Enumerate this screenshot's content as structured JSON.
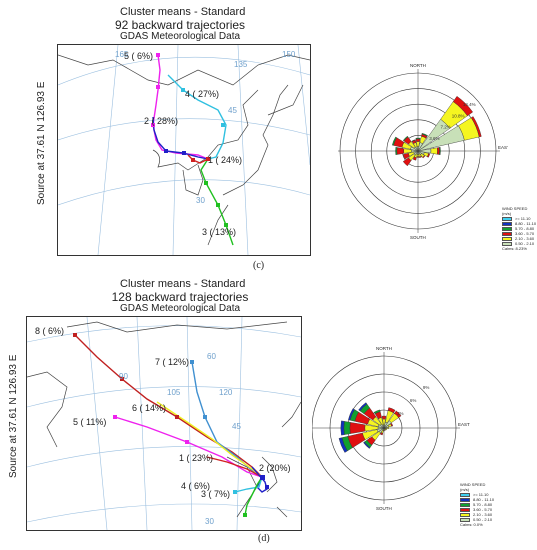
{
  "panels": [
    {
      "id": "c",
      "title1": "Cluster means - Standard",
      "title2": "92 backward trajectories",
      "title3": "GDAS Meteorological Data",
      "source": "Source    at 37.61 N  126.93 E",
      "label": "(c)",
      "clusters": [
        {
          "label": "5 (  6%)",
          "color": "#ee22ee"
        },
        {
          "label": "4 ( 27%)",
          "color": "#30c0e0"
        },
        {
          "label": "2 ( 28%)",
          "color": "#2020c8"
        },
        {
          "label": "1 ( 24%)",
          "color": "#d02020"
        },
        {
          "label": "3 ( 13%)",
          "color": "#20c020"
        }
      ],
      "geo_labels": [
        "165",
        "135",
        "150",
        "45",
        "30"
      ],
      "rose": {
        "directions": [
          "NORTH",
          "EAST",
          "SOUTH",
          "WEST"
        ],
        "ring_labels": [
          "14.4%",
          "10.8%",
          "7.2%",
          "3.6%"
        ],
        "legend_title": "WIND SPEED",
        "legend_unit": "(m/s)",
        "legend": [
          {
            "label": ">= 11.10",
            "color": "#40d0f0"
          },
          {
            "label": "8.80 - 11.10",
            "color": "#1030c0"
          },
          {
            "label": "5.70 - 8.80",
            "color": "#10a030"
          },
          {
            "label": "3.60 - 5.70",
            "color": "#e01010"
          },
          {
            "label": "2.10 - 3.60",
            "color": "#f5f520"
          },
          {
            "label": "0.50 - 2.10",
            "color": "#c8e0b8"
          }
        ],
        "calms": "Calms: 8.23%"
      }
    },
    {
      "id": "d",
      "title1": "Cluster means - Standard",
      "title2": "128 backward trajectories",
      "title3": "GDAS Meteorological Data",
      "source": "Source    at 37.61 N  126.93 E",
      "label": "(d)",
      "clusters": [
        {
          "label": "8 (  6%)",
          "color": "#c02020"
        },
        {
          "label": "7 ( 12%)",
          "color": "#4090d0"
        },
        {
          "label": "6 ( 14%)",
          "color": "#f0f020"
        },
        {
          "label": "5 ( 11%)",
          "color": "#ee22ee"
        },
        {
          "label": "1 ( 23%)",
          "color": "#d02020"
        },
        {
          "label": "2 (20%)",
          "color": "#2020c8"
        },
        {
          "label": "4 (  6%)",
          "color": "#30c0e0"
        },
        {
          "label": "3 (  7%)",
          "color": "#20c020"
        }
      ],
      "geo_labels": [
        "60",
        "90",
        "105",
        "120",
        "45",
        "30"
      ],
      "rose": {
        "directions": [
          "NORTH",
          "EAST",
          "SOUTH",
          "WEST"
        ],
        "ring_labels": [
          "9%",
          "6%",
          "3%"
        ],
        "legend_title": "WIND SPEED",
        "legend_unit": "(m/s)",
        "legend": [
          {
            "label": ">= 11.10",
            "color": "#40d0f0"
          },
          {
            "label": "8.80 - 11.10",
            "color": "#1030c0"
          },
          {
            "label": "5.70 - 8.80",
            "color": "#10a030"
          },
          {
            "label": "3.60 - 5.70",
            "color": "#e01010"
          },
          {
            "label": "2.10 - 3.60",
            "color": "#f5f520"
          },
          {
            "label": "0.50 - 2.10",
            "color": "#c8e0b8"
          }
        ],
        "calms": "Calms: 0.0%"
      }
    }
  ],
  "chart_data": [
    {
      "type": "map",
      "panel": "c",
      "title": "Cluster means - Standard",
      "subtitle": "92 backward trajectories",
      "series": [
        {
          "name": "5 (  6%)",
          "percent": 6
        },
        {
          "name": "4 ( 27%)",
          "percent": 27
        },
        {
          "name": "2 ( 28%)",
          "percent": 28
        },
        {
          "name": "1 ( 24%)",
          "percent": 24
        },
        {
          "name": "3 ( 13%)",
          "percent": 13
        }
      ]
    },
    {
      "type": "wind-rose",
      "panel": "c",
      "directions": [
        "N",
        "NNE",
        "NE",
        "ENE",
        "E",
        "ESE",
        "SE",
        "SSE",
        "S",
        "SSW",
        "SW",
        "WSW",
        "W",
        "WNW",
        "NW",
        "NNW"
      ],
      "bins": [
        "0.50 - 2.10",
        "2.10 - 3.60",
        "3.60 - 5.70",
        "5.70 - 8.80",
        "8.80 - 11.10",
        ">= 11.10"
      ],
      "frequency_pct": [
        [
          1.0,
          1.2,
          0.6,
          0.2,
          0.0,
          0.0
        ],
        [
          2.0,
          1.5,
          0.5,
          0.2,
          0.0,
          0.0
        ],
        [
          9.0,
          5.0,
          1.5,
          0.0,
          0.0,
          0.0
        ],
        [
          11.0,
          3.5,
          0.5,
          0.0,
          0.0,
          0.0
        ],
        [
          3.0,
          1.5,
          0.5,
          0.2,
          0.0,
          0.0
        ],
        [
          1.5,
          1.0,
          0.3,
          0.0,
          0.0,
          0.0
        ],
        [
          1.0,
          0.8,
          0.2,
          0.0,
          0.0,
          0.0
        ],
        [
          0.8,
          0.6,
          0.2,
          0.0,
          0.0,
          0.0
        ],
        [
          0.8,
          0.5,
          0.2,
          0.0,
          0.0,
          0.0
        ],
        [
          0.8,
          0.8,
          0.6,
          0.0,
          0.0,
          0.0
        ],
        [
          1.2,
          1.5,
          1.5,
          0.0,
          0.0,
          0.0
        ],
        [
          1.0,
          1.3,
          1.2,
          0.0,
          0.0,
          0.0
        ],
        [
          1.5,
          1.8,
          1.6,
          0.3,
          0.0,
          0.0
        ],
        [
          1.8,
          2.0,
          2.0,
          0.3,
          0.0,
          0.0
        ],
        [
          1.2,
          1.5,
          1.3,
          0.2,
          0.0,
          0.0
        ],
        [
          1.0,
          1.0,
          0.6,
          0.1,
          0.0,
          0.0
        ]
      ]
    },
    {
      "type": "map",
      "panel": "d",
      "title": "Cluster means - Standard",
      "subtitle": "128 backward trajectories",
      "series": [
        {
          "name": "8 (  6%)",
          "percent": 6
        },
        {
          "name": "7 ( 12%)",
          "percent": 12
        },
        {
          "name": "6 ( 14%)",
          "percent": 14
        },
        {
          "name": "5 ( 11%)",
          "percent": 11
        },
        {
          "name": "1 ( 23%)",
          "percent": 23
        },
        {
          "name": "2 (20%)",
          "percent": 20
        },
        {
          "name": "4 (  6%)",
          "percent": 6
        },
        {
          "name": "3 (  7%)",
          "percent": 7
        }
      ]
    },
    {
      "type": "wind-rose",
      "panel": "d",
      "directions": [
        "N",
        "NNE",
        "NE",
        "ENE",
        "E",
        "ESE",
        "SE",
        "SSE",
        "S",
        "SSW",
        "SW",
        "WSW",
        "W",
        "WNW",
        "NW",
        "NNW"
      ],
      "bins": [
        "0.50 - 2.10",
        "2.10 - 3.60",
        "3.60 - 5.70",
        "5.70 - 8.80",
        "8.80 - 11.10",
        ">= 11.10"
      ],
      "frequency_pct": [
        [
          0.5,
          1.0,
          0.5,
          0.0,
          0.0,
          0.0
        ],
        [
          1.0,
          2.0,
          0.5,
          0.0,
          0.0,
          0.0
        ],
        [
          1.5,
          1.5,
          0.5,
          0.0,
          0.0,
          0.0
        ],
        [
          0.8,
          0.5,
          0.2,
          0.0,
          0.0,
          0.0
        ],
        [
          0.5,
          0.3,
          0.0,
          0.0,
          0.0,
          0.0
        ],
        [
          0.3,
          0.2,
          0.0,
          0.0,
          0.0,
          0.0
        ],
        [
          0.3,
          0.2,
          0.0,
          0.0,
          0.0,
          0.0
        ],
        [
          0.2,
          0.2,
          0.0,
          0.0,
          0.0,
          0.0
        ],
        [
          0.2,
          0.2,
          0.1,
          0.0,
          0.0,
          0.0
        ],
        [
          0.4,
          0.5,
          0.3,
          0.0,
          0.0,
          0.0
        ],
        [
          1.0,
          1.5,
          1.0,
          0.5,
          0.2,
          0.0
        ],
        [
          1.2,
          2.5,
          2.5,
          1.0,
          0.5,
          0.0
        ],
        [
          1.0,
          2.2,
          2.5,
          1.0,
          0.5,
          0.0
        ],
        [
          1.0,
          1.8,
          2.2,
          0.8,
          0.3,
          0.0
        ],
        [
          0.8,
          1.5,
          1.8,
          0.8,
          0.3,
          0.0
        ],
        [
          0.6,
          1.2,
          1.0,
          0.3,
          0.0,
          0.0
        ]
      ]
    }
  ]
}
